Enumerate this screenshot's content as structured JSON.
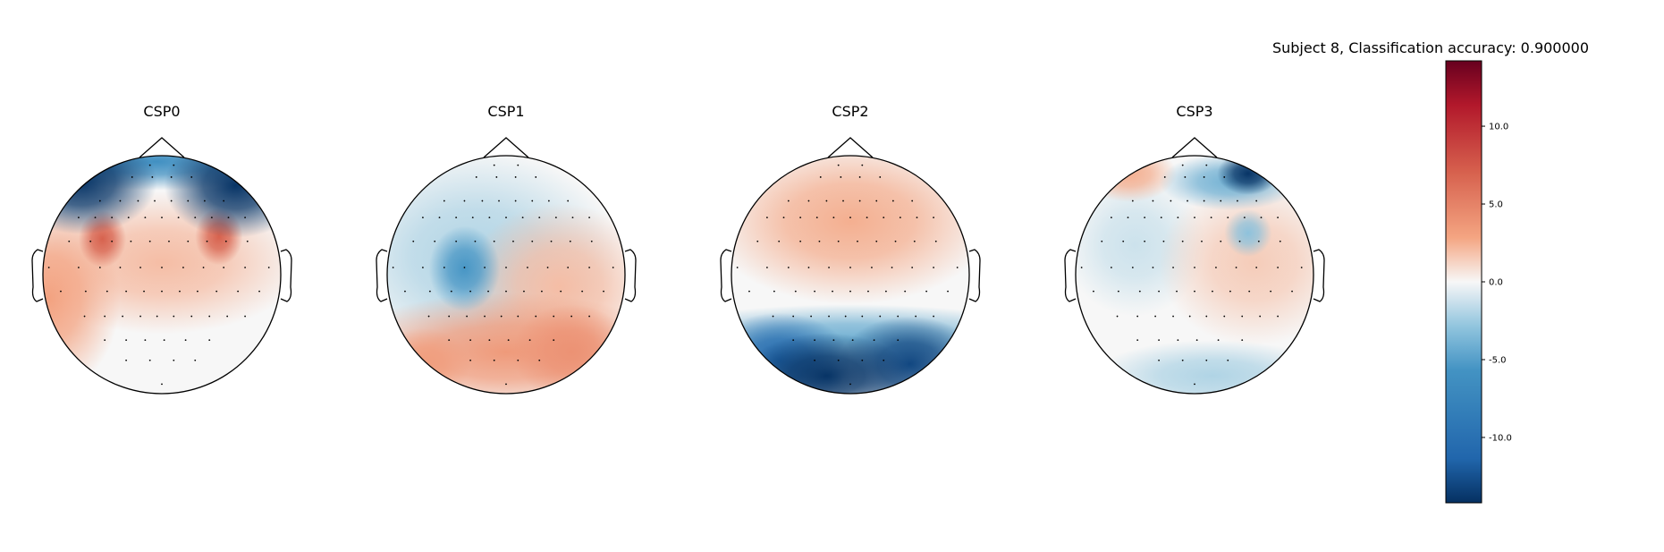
{
  "figure_title": "Subject 8, Classification accuracy: 0.900000",
  "chart_data": {
    "type": "heatmap",
    "title": "Subject 8, Classification accuracy: 0.900000",
    "colormap": "RdBu_r",
    "colors": {
      "negative": "#053061",
      "neutral": "#f7f7f7",
      "positive": "#67001f"
    },
    "colorbar": {
      "vmin": -14.2,
      "vmax": 14.2,
      "ticks": [
        10.0,
        5.0,
        0.0,
        -5.0,
        -10.0
      ],
      "tick_labels": [
        "10.0",
        "5.0",
        "0.0",
        "-5.0",
        "-10.0"
      ]
    },
    "topomaps": [
      {
        "name": "CSP0",
        "blobs": [
          {
            "x": -0.68,
            "y": 0.78,
            "sx": 0.32,
            "sy": 0.22,
            "v": -14
          },
          {
            "x": 0.62,
            "y": 0.75,
            "sx": 0.3,
            "sy": 0.22,
            "v": -14
          },
          {
            "x": -0.05,
            "y": 0.95,
            "sx": 0.55,
            "sy": 0.12,
            "v": -6
          },
          {
            "x": -0.5,
            "y": 0.3,
            "sx": 0.1,
            "sy": 0.12,
            "v": 7
          },
          {
            "x": 0.48,
            "y": 0.32,
            "sx": 0.1,
            "sy": 0.12,
            "v": 7
          },
          {
            "x": 0,
            "y": 0.1,
            "sx": 0.6,
            "sy": 0.3,
            "v": 2
          },
          {
            "x": -0.95,
            "y": -0.2,
            "sx": 0.3,
            "sy": 0.4,
            "v": 3
          }
        ]
      },
      {
        "name": "CSP1",
        "blobs": [
          {
            "x": -0.35,
            "y": 0.05,
            "sx": 0.15,
            "sy": 0.18,
            "v": -5.5
          },
          {
            "x": -0.25,
            "y": 0.15,
            "sx": 0.6,
            "sy": 0.45,
            "v": -2
          },
          {
            "x": 0,
            "y": -0.65,
            "sx": 0.7,
            "sy": 0.25,
            "v": 3.5
          },
          {
            "x": 0.55,
            "y": -0.65,
            "sx": 0.25,
            "sy": 0.2,
            "v": 4
          },
          {
            "x": -0.7,
            "y": -0.75,
            "sx": 0.2,
            "sy": 0.15,
            "v": 3
          },
          {
            "x": 0.45,
            "y": -0.1,
            "sx": 0.4,
            "sy": 0.35,
            "v": 2
          }
        ]
      },
      {
        "name": "CSP2",
        "blobs": [
          {
            "x": -0.2,
            "y": -0.85,
            "sx": 0.35,
            "sy": 0.18,
            "v": -14
          },
          {
            "x": 0.5,
            "y": -0.75,
            "sx": 0.3,
            "sy": 0.2,
            "v": -13
          },
          {
            "x": -0.6,
            "y": -0.72,
            "sx": 0.3,
            "sy": 0.2,
            "v": -11
          },
          {
            "x": 0,
            "y": -0.55,
            "sx": 0.9,
            "sy": 0.15,
            "v": -4
          },
          {
            "x": 0,
            "y": 0.45,
            "sx": 0.6,
            "sy": 0.35,
            "v": 2.5
          }
        ]
      },
      {
        "name": "CSP3",
        "blobs": [
          {
            "x": 0.45,
            "y": 0.85,
            "sx": 0.13,
            "sy": 0.09,
            "v": -14
          },
          {
            "x": 0.3,
            "y": 0.78,
            "sx": 0.3,
            "sy": 0.12,
            "v": -4
          },
          {
            "x": 0.45,
            "y": 0.35,
            "sx": 0.1,
            "sy": 0.1,
            "v": -3
          },
          {
            "x": -0.55,
            "y": 0.85,
            "sx": 0.2,
            "sy": 0.12,
            "v": 2.5
          },
          {
            "x": 0.5,
            "y": 0.1,
            "sx": 0.4,
            "sy": 0.35,
            "v": 1.5
          },
          {
            "x": -0.5,
            "y": 0.25,
            "sx": 0.3,
            "sy": 0.3,
            "v": -1.2
          },
          {
            "x": 0.15,
            "y": -0.85,
            "sx": 0.5,
            "sy": 0.15,
            "v": -2
          }
        ]
      }
    ]
  }
}
